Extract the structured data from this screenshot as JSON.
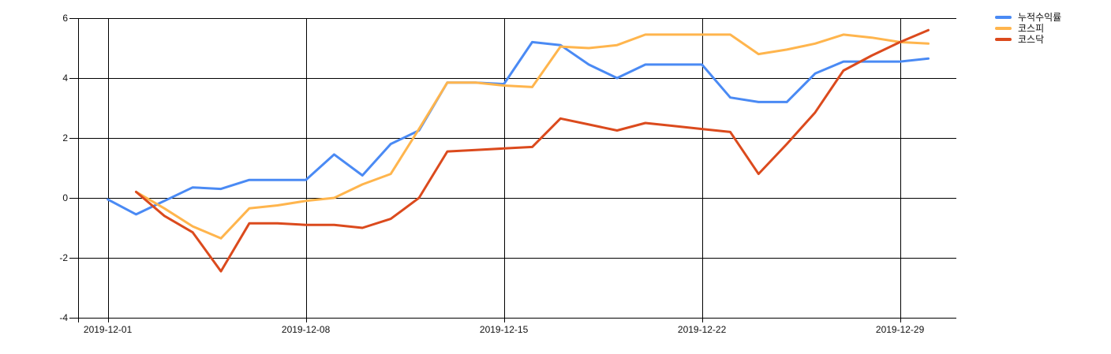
{
  "chart_data": {
    "type": "line",
    "title": "",
    "xlabel": "",
    "ylabel": "",
    "ylim": [
      -4,
      6
    ],
    "grid": true,
    "legend_position": "right",
    "x_axis": {
      "ticks": [
        "2019-12-01",
        "2019-12-08",
        "2019-12-15",
        "2019-12-22",
        "2019-12-29"
      ]
    },
    "y_axis": {
      "ticks": [
        {
          "label": "6",
          "value": 6
        },
        {
          "label": "4",
          "value": 4
        },
        {
          "label": "2",
          "value": 2
        },
        {
          "label": "0",
          "value": 0
        },
        {
          "label": "-2",
          "value": -2
        },
        {
          "label": "-4",
          "value": -4
        }
      ]
    },
    "x": [
      "2019-12-01",
      "2019-12-02",
      "2019-12-03",
      "2019-12-04",
      "2019-12-05",
      "2019-12-06",
      "2019-12-07",
      "2019-12-08",
      "2019-12-09",
      "2019-12-10",
      "2019-12-11",
      "2019-12-12",
      "2019-12-13",
      "2019-12-14",
      "2019-12-15",
      "2019-12-16",
      "2019-12-17",
      "2019-12-18",
      "2019-12-19",
      "2019-12-20",
      "2019-12-21",
      "2019-12-22",
      "2019-12-23",
      "2019-12-24",
      "2019-12-25",
      "2019-12-26",
      "2019-12-27",
      "2019-12-28",
      "2019-12-29",
      "2019-12-30"
    ],
    "series": [
      {
        "name": "누적수익률",
        "color": "#4a8af4",
        "values": [
          -0.05,
          -0.55,
          -0.1,
          0.35,
          0.3,
          0.6,
          0.6,
          0.6,
          1.45,
          0.75,
          1.8,
          2.25,
          3.85,
          3.85,
          3.8,
          5.2,
          5.1,
          4.45,
          4.0,
          4.45,
          4.45,
          4.45,
          3.35,
          3.2,
          3.2,
          4.15,
          4.55,
          4.55,
          4.55,
          4.65
        ]
      },
      {
        "name": "코스피",
        "color": "#ffb54d",
        "values": [
          null,
          0.2,
          -0.35,
          -0.95,
          -1.35,
          -0.35,
          -0.25,
          -0.1,
          0.0,
          0.45,
          0.8,
          2.3,
          3.85,
          3.85,
          3.75,
          3.7,
          5.05,
          5.0,
          5.1,
          5.45,
          5.45,
          5.45,
          5.45,
          4.8,
          4.95,
          5.15,
          5.45,
          5.35,
          5.2,
          5.15
        ]
      },
      {
        "name": "코스닥",
        "color": "#db4a1d",
        "values": [
          null,
          0.2,
          -0.6,
          -1.15,
          -2.45,
          -0.85,
          -0.85,
          -0.9,
          -0.9,
          -1.0,
          -0.7,
          0.0,
          1.55,
          1.6,
          1.65,
          1.7,
          2.65,
          2.45,
          2.25,
          2.5,
          2.4,
          2.3,
          2.2,
          0.8,
          1.8,
          2.85,
          4.25,
          4.75,
          5.2,
          5.6
        ]
      }
    ],
    "grid_color": "#000000",
    "background_color": "#ffffff"
  }
}
